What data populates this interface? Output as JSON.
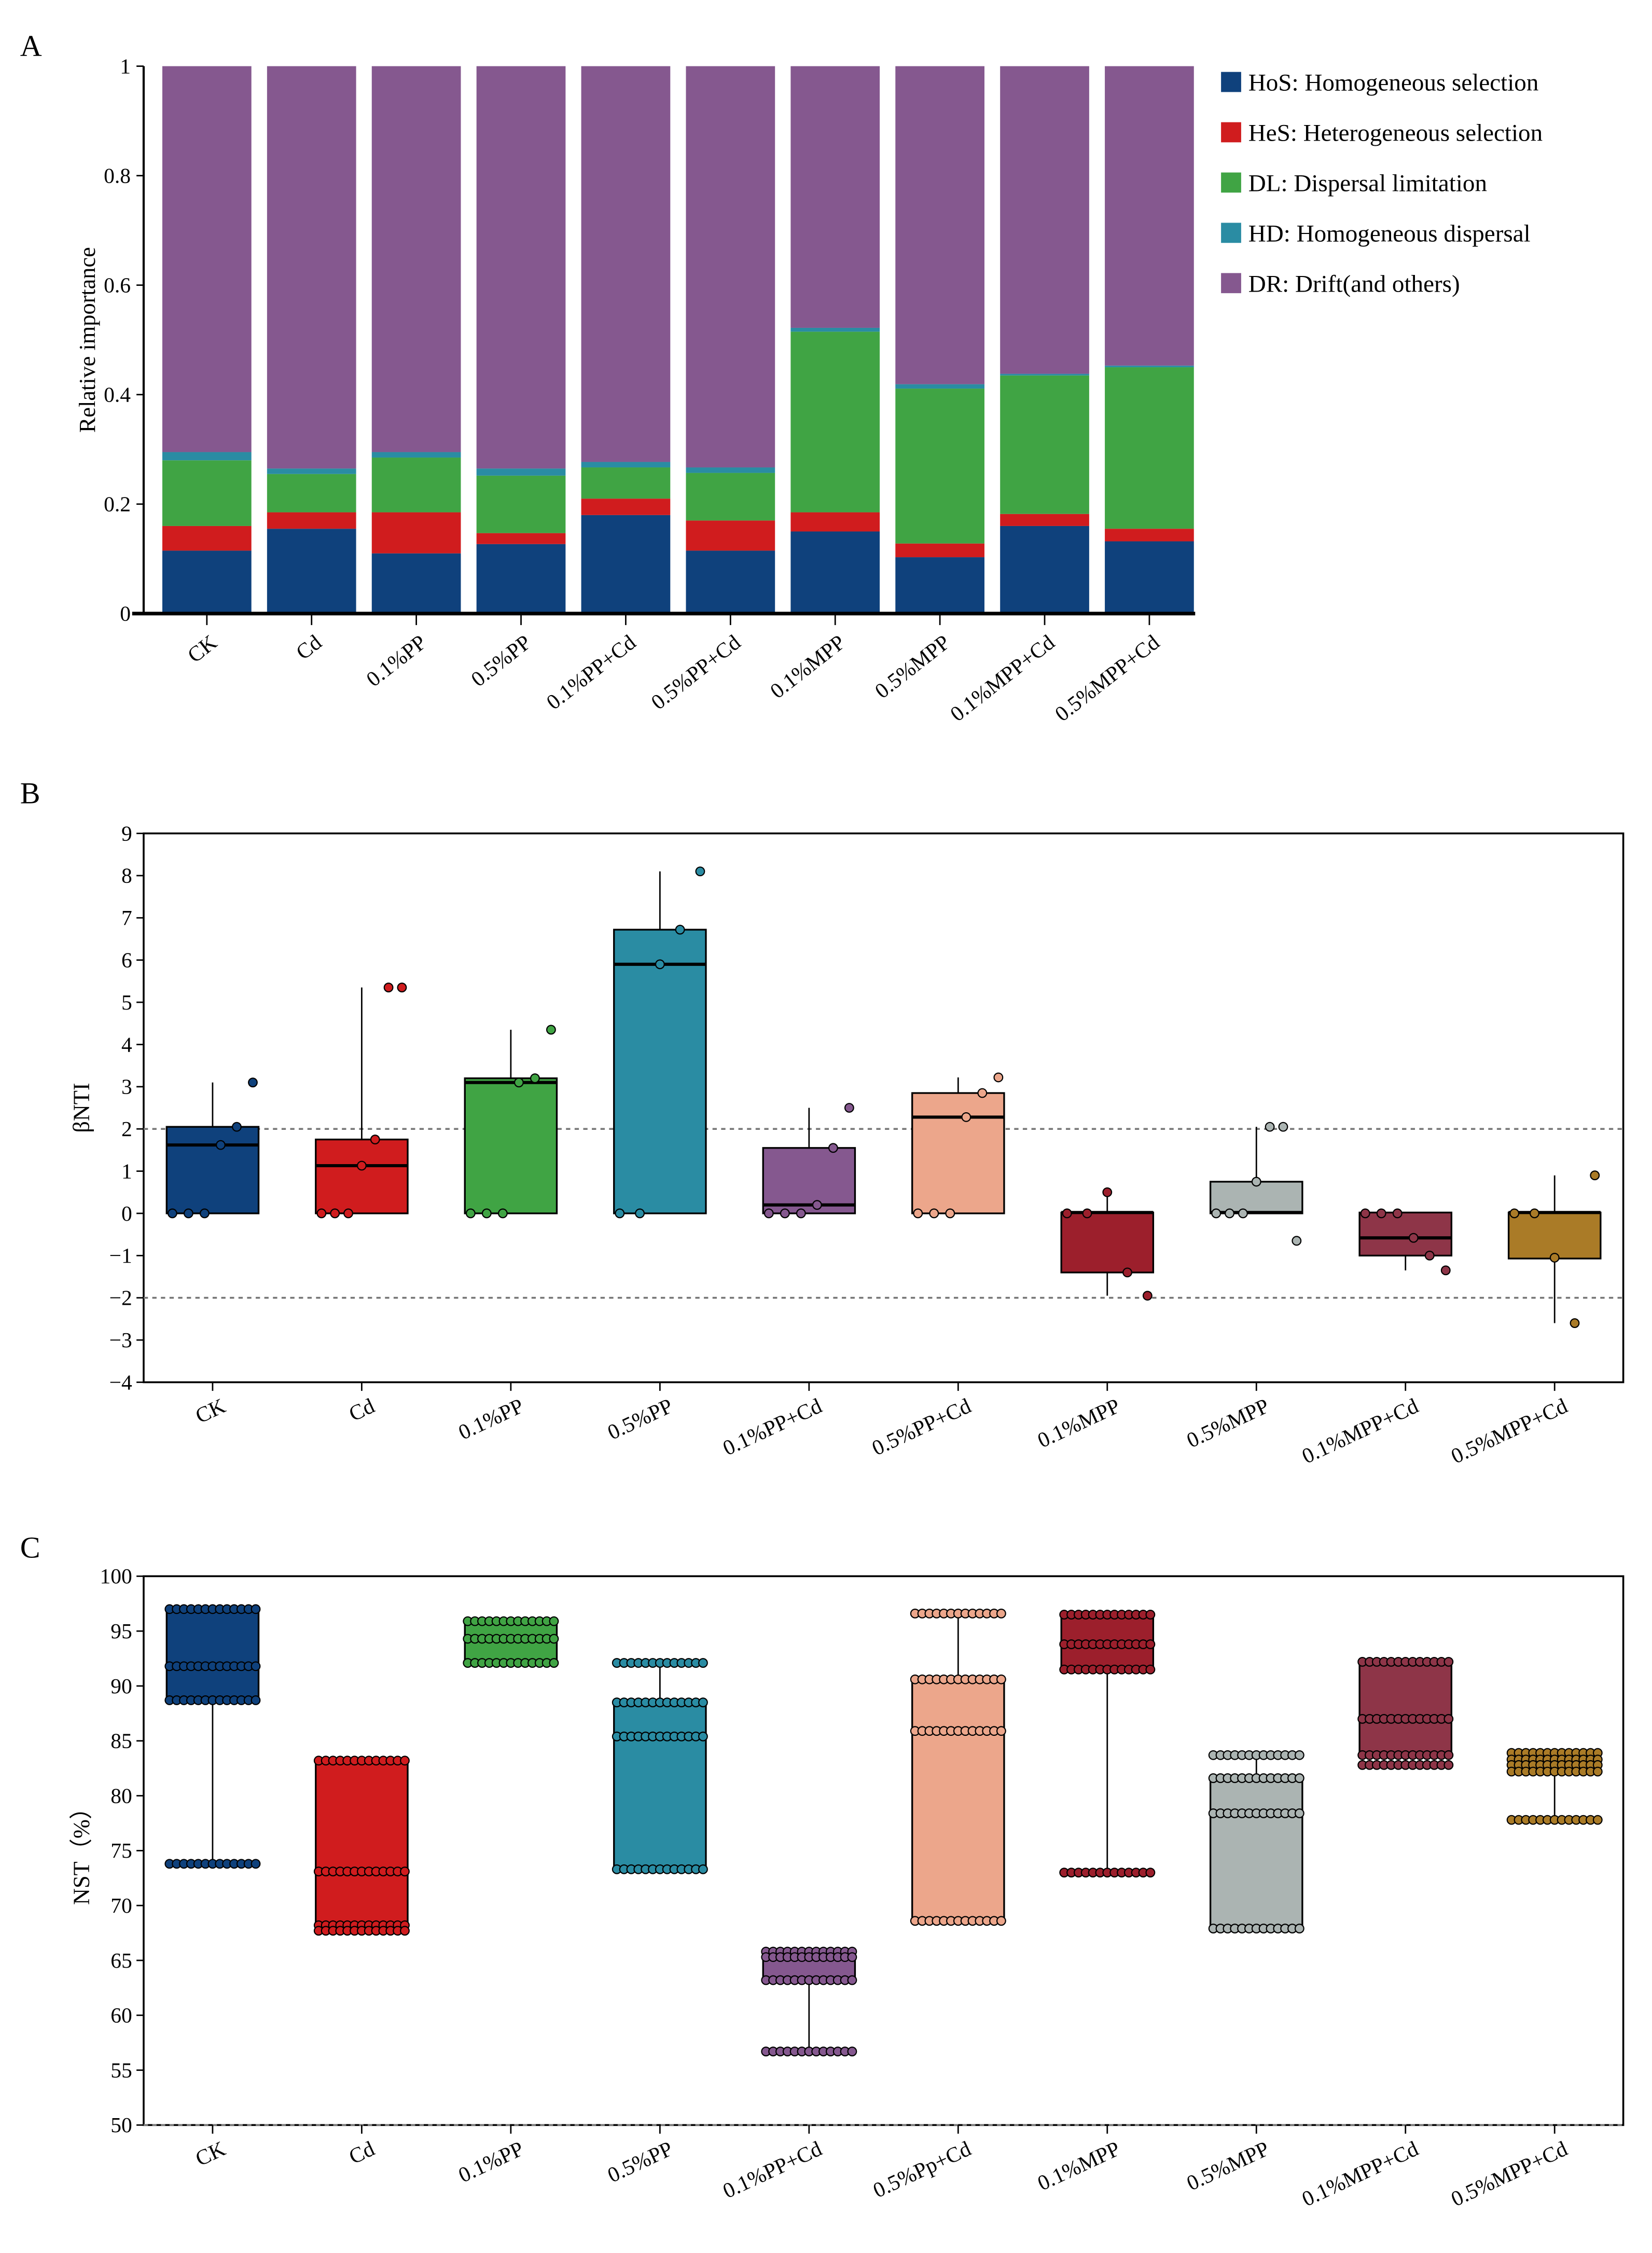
{
  "panels": {
    "a": "A",
    "b": "B",
    "c": "C"
  },
  "chart_data": [
    {
      "type": "bar",
      "stacked": true,
      "ylabel": "Relative importance",
      "ylim": [
        0,
        1
      ],
      "yticks": [
        "0",
        "0.2",
        "0.4",
        "0.6",
        "0.8",
        "1"
      ],
      "legend_position": "right",
      "categories": [
        "CK",
        "Cd",
        "0.1%PP",
        "0.5%PP",
        "0.1%PP+Cd",
        "0.5%PP+Cd",
        "0.1%MPP",
        "0.5%MPP",
        "0.1%MPP+Cd",
        "0.5%MPP+Cd"
      ],
      "series": [
        {
          "name": "HoS: Homogeneous selection",
          "color": "#0f417c",
          "values": [
            0.115,
            0.155,
            0.11,
            0.127,
            0.18,
            0.115,
            0.15,
            0.103,
            0.16,
            0.132
          ]
        },
        {
          "name": "HeS: Heterogeneous selection",
          "color": "#d01c1e",
          "values": [
            0.045,
            0.03,
            0.075,
            0.02,
            0.03,
            0.055,
            0.035,
            0.025,
            0.022,
            0.023
          ]
        },
        {
          "name": "DL: Dispersal limitation",
          "color": "#40a444",
          "values": [
            0.12,
            0.07,
            0.1,
            0.105,
            0.057,
            0.087,
            0.33,
            0.283,
            0.253,
            0.295
          ]
        },
        {
          "name": "HD: Homogeneous dispersal",
          "color": "#2a8ca3",
          "values": [
            0.015,
            0.01,
            0.01,
            0.013,
            0.01,
            0.01,
            0.007,
            0.008,
            0.003,
            0.003
          ]
        },
        {
          "name": "DR: Drift(and others)",
          "color": "#85588f",
          "values": [
            0.705,
            0.735,
            0.705,
            0.735,
            0.723,
            0.733,
            0.478,
            0.581,
            0.562,
            0.547
          ]
        }
      ]
    },
    {
      "type": "box",
      "ylabel": "βNTI",
      "ylim": [
        -4,
        9
      ],
      "yticks": [
        "−4",
        "−3",
        "−2",
        "−1",
        "0",
        "1",
        "2",
        "3",
        "4",
        "5",
        "6",
        "7",
        "8",
        "9"
      ],
      "reference_lines": [
        2,
        -2
      ],
      "categories": [
        "CK",
        "Cd",
        "0.1%PP",
        "0.5%PP",
        "0.1%PP+Cd",
        "0.5%PP+Cd",
        "0.1%MPP",
        "0.5%MPP",
        "0.1%MPP+Cd",
        "0.5%MPP+Cd"
      ],
      "colors": [
        "#0f417c",
        "#d01c1e",
        "#40a444",
        "#2a8ca3",
        "#85588f",
        "#eca68b",
        "#9c1f2c",
        "#abb4b2",
        "#8e3548",
        "#aa7b27"
      ],
      "boxes": [
        {
          "q1": 0,
          "median": 1.62,
          "q3": 2.05,
          "low": 0,
          "high": 3.1,
          "points": [
            0,
            0,
            0,
            1.62,
            2.05,
            3.1
          ]
        },
        {
          "q1": 0,
          "median": 1.13,
          "q3": 1.75,
          "low": 0,
          "high": 5.35,
          "points": [
            0,
            0,
            0,
            1.13,
            1.75,
            5.35,
            5.35
          ]
        },
        {
          "q1": 0,
          "median": 3.1,
          "q3": 3.2,
          "low": 0,
          "high": 4.35,
          "points": [
            0,
            0,
            0,
            3.1,
            3.2,
            4.35
          ]
        },
        {
          "q1": 0,
          "median": 5.9,
          "q3": 6.72,
          "low": 0,
          "high": 8.1,
          "points": [
            0,
            0,
            5.9,
            6.72,
            8.1
          ]
        },
        {
          "q1": 0,
          "median": 0.2,
          "q3": 1.55,
          "low": 0,
          "high": 2.5,
          "points": [
            0,
            0,
            0,
            0.2,
            1.55,
            2.5
          ]
        },
        {
          "q1": 0,
          "median": 2.28,
          "q3": 2.85,
          "low": 0,
          "high": 3.22,
          "points": [
            0,
            0,
            0,
            2.28,
            2.85,
            3.22
          ]
        },
        {
          "q1": -1.4,
          "median": 0.02,
          "q3": 0.02,
          "low": -1.95,
          "high": 0.5,
          "points": [
            0,
            0,
            0.5,
            -1.4,
            -1.95
          ]
        },
        {
          "q1": 0,
          "median": 0.02,
          "q3": 0.75,
          "low": 0,
          "high": 2.05,
          "points": [
            0,
            0,
            0,
            0.75,
            2.05,
            2.05,
            -0.65
          ]
        },
        {
          "q1": -1.0,
          "median": -0.58,
          "q3": 0.02,
          "low": -1.35,
          "high": 0.02,
          "points": [
            0,
            0,
            0,
            -0.58,
            -1.0,
            -1.35
          ]
        },
        {
          "q1": -1.07,
          "median": 0.02,
          "q3": 0.02,
          "low": -2.6,
          "high": 0.9,
          "points": [
            0,
            0,
            -1.05,
            -2.6,
            0.9
          ]
        }
      ]
    },
    {
      "type": "box",
      "ylabel": "NST（%）",
      "ylim": [
        50,
        100
      ],
      "yticks": [
        "50",
        "55",
        "60",
        "65",
        "70",
        "75",
        "80",
        "85",
        "90",
        "95",
        "100"
      ],
      "reference_lines": [
        50
      ],
      "categories": [
        "CK",
        "Cd",
        "0.1%PP",
        "0.5%PP",
        "0.1%PP+Cd",
        "0.5%Pp+Cd",
        "0.1%MPP",
        "0.5%MPP",
        "0.1%MPP+Cd",
        "0.5%MPP+Cd"
      ],
      "colors": [
        "#0f417c",
        "#d01c1e",
        "#40a444",
        "#2a8ca3",
        "#85588f",
        "#eca68b",
        "#9c1f2c",
        "#abb4b2",
        "#8e3548",
        "#aa7b27"
      ],
      "boxes": [
        {
          "q1": 88.7,
          "median": 91.8,
          "q3": 97.0,
          "low": 73.8,
          "high": 97.0,
          "point_levels": [
            97.0,
            91.8,
            88.7,
            73.8
          ]
        },
        {
          "q1": 67.7,
          "median": 73.1,
          "q3": 83.2,
          "low": 67.7,
          "high": 83.2,
          "point_levels": [
            83.2,
            73.1,
            68.2,
            67.7
          ]
        },
        {
          "q1": 92.1,
          "median": 94.3,
          "q3": 95.9,
          "low": 92.1,
          "high": 95.9,
          "point_levels": [
            95.9,
            94.3,
            92.1
          ]
        },
        {
          "q1": 73.3,
          "median": 85.4,
          "q3": 88.5,
          "low": 73.3,
          "high": 92.1,
          "point_levels": [
            92.1,
            88.5,
            85.4,
            73.3
          ]
        },
        {
          "q1": 63.2,
          "median": 65.3,
          "q3": 65.8,
          "low": 56.7,
          "high": 65.8,
          "point_levels": [
            65.8,
            65.3,
            63.2,
            56.7
          ]
        },
        {
          "q1": 68.6,
          "median": 85.9,
          "q3": 90.6,
          "low": 68.6,
          "high": 96.6,
          "point_levels": [
            96.6,
            90.6,
            85.9,
            68.6
          ]
        },
        {
          "q1": 91.5,
          "median": 93.8,
          "q3": 96.5,
          "low": 73.0,
          "high": 96.5,
          "point_levels": [
            96.5,
            93.8,
            91.5,
            73.0
          ]
        },
        {
          "q1": 67.9,
          "median": 78.4,
          "q3": 81.6,
          "low": 67.9,
          "high": 83.7,
          "point_levels": [
            83.7,
            81.6,
            78.4,
            67.9
          ]
        },
        {
          "q1": 83.5,
          "median": 87.0,
          "q3": 92.2,
          "low": 82.8,
          "high": 92.2,
          "point_levels": [
            92.2,
            87.0,
            83.7,
            82.8
          ]
        },
        {
          "q1": 82.2,
          "median": 82.8,
          "q3": 83.9,
          "low": 77.8,
          "high": 83.9,
          "point_levels": [
            83.9,
            83.3,
            82.8,
            82.2,
            77.8
          ]
        }
      ]
    }
  ]
}
